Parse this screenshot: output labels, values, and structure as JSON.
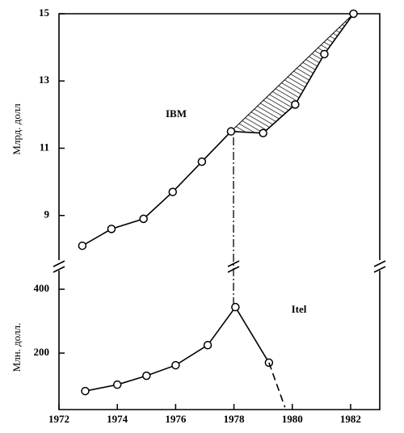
{
  "chart_data": [
    {
      "type": "line",
      "ylabel": "Млрд. долл",
      "annotation": "IBM",
      "xlim": [
        1972,
        1983
      ],
      "ylim": [
        7.6,
        15
      ],
      "yticks": [
        9,
        11,
        13,
        15
      ],
      "hatched": true,
      "series": [
        {
          "color": "#000000",
          "x": [
            1972.8,
            1973.8,
            1974.9,
            1975.9,
            1976.9,
            1977.9,
            1979.0,
            1980.1,
            1981.1,
            1982.1
          ],
          "values": [
            8.1,
            8.6,
            8.9,
            9.7,
            10.6,
            11.5,
            11.45,
            12.3,
            13.8,
            15
          ]
        }
      ]
    },
    {
      "type": "line",
      "ylabel": "Млн. долл.",
      "annotation": "Itel",
      "xlim": [
        1972,
        1983
      ],
      "ylim": [
        23,
        471
      ],
      "yticks": [
        200,
        400
      ],
      "xticks": [
        1972,
        1974,
        1976,
        1978,
        1980,
        1982
      ],
      "series": [
        {
          "color": "#000000",
          "x": [
            1972.9,
            1974,
            1975,
            1976,
            1977.1,
            1978.05,
            1979.2
          ],
          "values": [
            81,
            101,
            129,
            162,
            225,
            344,
            170
          ]
        },
        {
          "color": "#000000",
          "style": "dashed",
          "x": [
            1979.2,
            1979.75
          ],
          "values": [
            170,
            30
          ]
        }
      ]
    }
  ]
}
